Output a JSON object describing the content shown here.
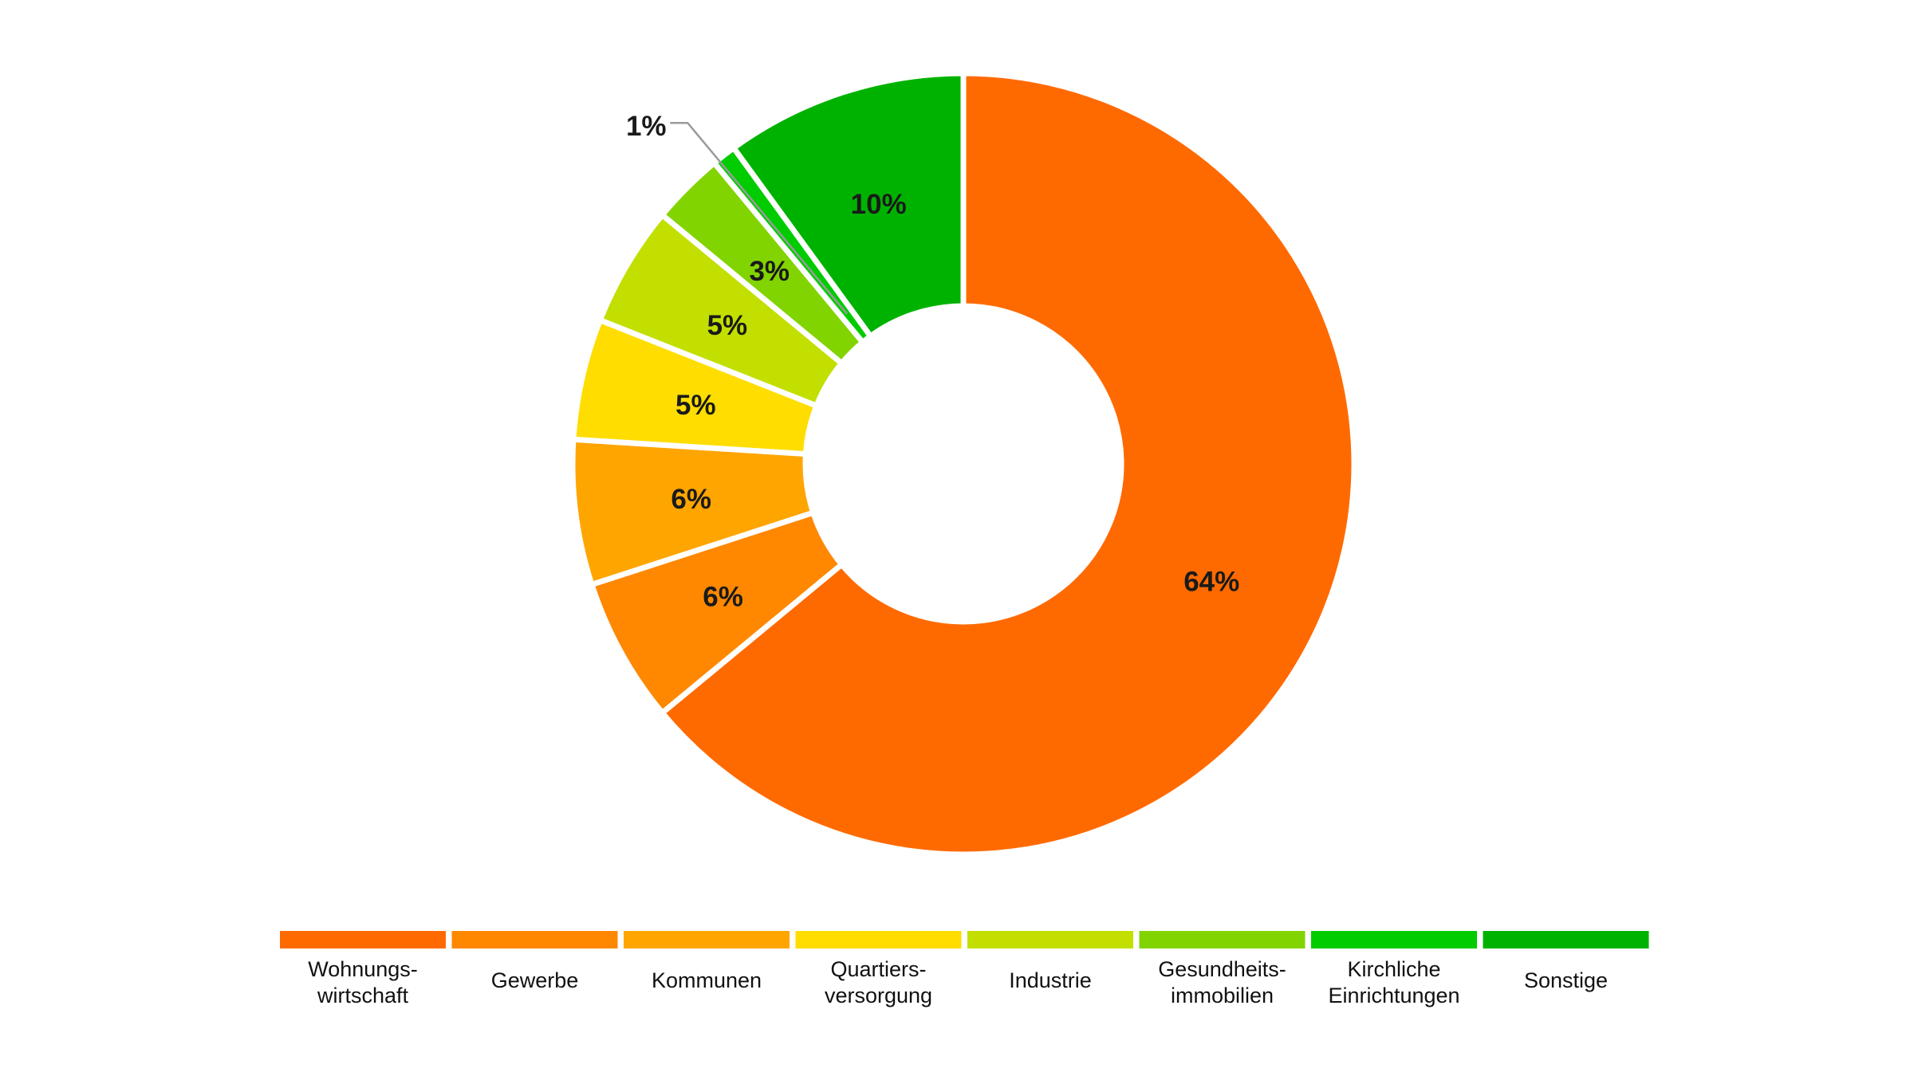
{
  "chart_data": {
    "type": "pie",
    "donut": true,
    "title": "",
    "legend_position": "bottom",
    "slices": [
      {
        "label": "Wohnungs-\nwirtschaft",
        "value": 64,
        "display": "64%",
        "color": "#FF6A00"
      },
      {
        "label": "Gewerbe",
        "value": 6,
        "display": "6%",
        "color": "#FF8800"
      },
      {
        "label": "Kommunen",
        "value": 6,
        "display": "6%",
        "color": "#FFA500"
      },
      {
        "label": "Quartiers-\nversorgung",
        "value": 5,
        "display": "5%",
        "color": "#FFDD00"
      },
      {
        "label": "Industrie",
        "value": 5,
        "display": "5%",
        "color": "#C2DF00"
      },
      {
        "label": "Gesundheits-\nimmobilien",
        "value": 3,
        "display": "3%",
        "color": "#82D400"
      },
      {
        "label": "Kirchliche\nEinrichtungen",
        "value": 1,
        "display": "1%",
        "color": "#00CC00"
      },
      {
        "label": "Sonstige",
        "value": 10,
        "display": "10%",
        "color": "#00B200"
      }
    ]
  }
}
